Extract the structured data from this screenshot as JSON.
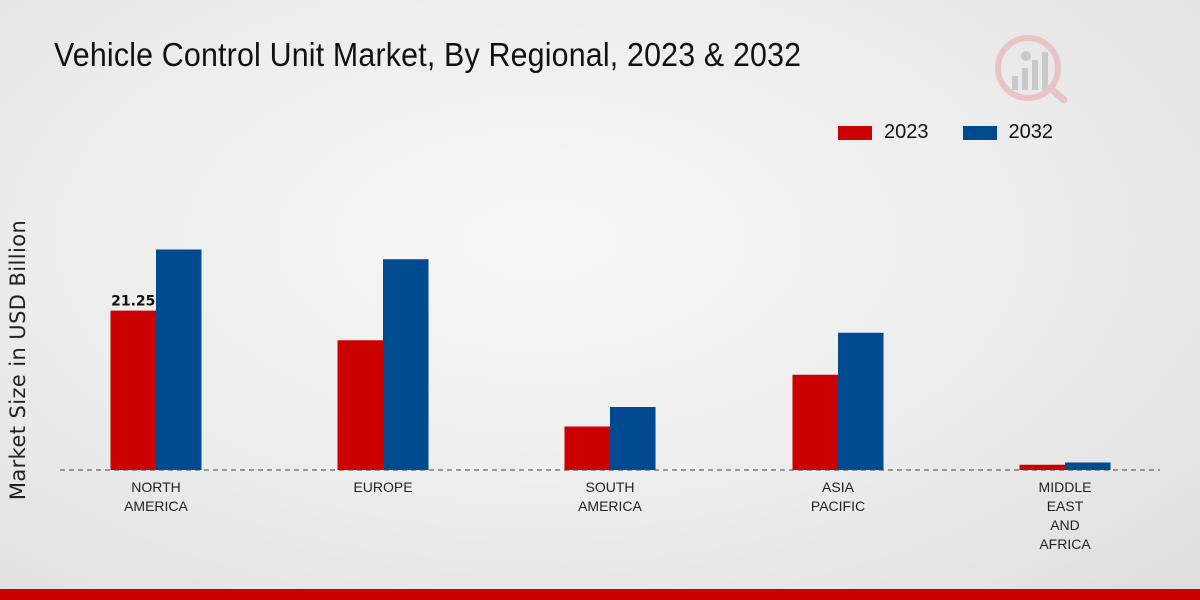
{
  "chart_data": {
    "type": "bar",
    "title": "Vehicle Control Unit Market, By Regional, 2023 & 2032",
    "xlabel": "",
    "ylabel": "Market Size in USD Billion",
    "ylim": [
      0,
      40
    ],
    "categories": [
      [
        "NORTH",
        "AMERICA"
      ],
      [
        "EUROPE"
      ],
      [
        "SOUTH",
        "AMERICA"
      ],
      [
        "ASIA",
        "PACIFIC"
      ],
      [
        "MIDDLE",
        "EAST",
        "AND",
        "AFRICA"
      ]
    ],
    "category_ids": [
      "north-america",
      "europe",
      "south-america",
      "asia-pacific",
      "middle-east-and-africa"
    ],
    "series": [
      {
        "name": "2023",
        "color": "#cc0000",
        "values": [
          21.25,
          17.3,
          5.8,
          12.7,
          0.7
        ]
      },
      {
        "name": "2032",
        "color": "#004a8f",
        "values": [
          29.4,
          28.1,
          8.4,
          18.3,
          1.0
        ]
      }
    ],
    "data_labels": [
      {
        "series": 0,
        "index": 0,
        "text": "21.25"
      }
    ],
    "legend_position": "top-right",
    "grid": false
  },
  "brand": {
    "accent_color": "#cc0000"
  }
}
